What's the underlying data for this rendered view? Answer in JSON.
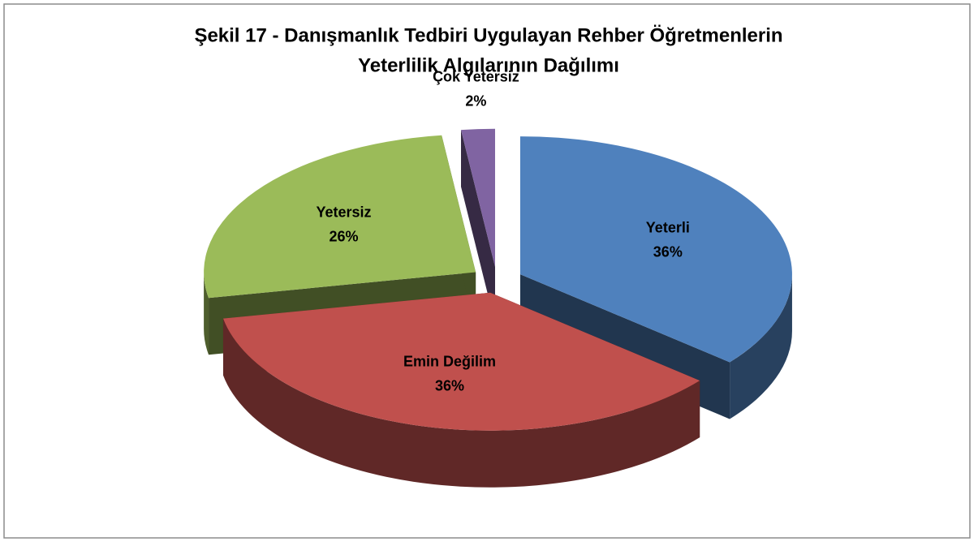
{
  "chart_data": {
    "type": "pie",
    "title": [
      "Şekil 17 - Danışmanlık Tedbiri Uygulayan Rehber Öğretmenlerin",
      "Yeterlilik Algılarının Dağılımı"
    ],
    "categories": [
      "Yeterli",
      "Emin Değilim",
      "Yetersiz",
      "Çok Yetersiz"
    ],
    "values": [
      36,
      36,
      26,
      2
    ],
    "value_labels": [
      "36%",
      "36%",
      "26%",
      "2%"
    ],
    "colors": [
      "#4f81bd",
      "#c0504d",
      "#9bbb59",
      "#8064a2"
    ]
  }
}
